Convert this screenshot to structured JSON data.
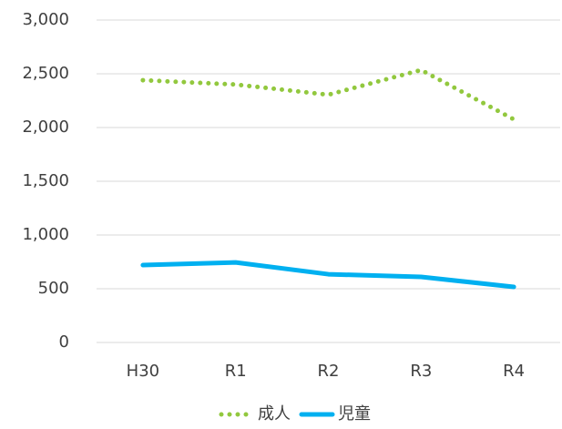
{
  "chart_data": {
    "type": "line",
    "categories": [
      "H30",
      "R1",
      "R2",
      "R3",
      "R4"
    ],
    "series": [
      {
        "name": "成人",
        "color": "#92c83e",
        "style": "dotted",
        "values": [
          2440,
          2400,
          2305,
          2535,
          2076
        ]
      },
      {
        "name": "児童",
        "color": "#00b0f0",
        "style": "solid",
        "values": [
          720,
          745,
          635,
          610,
          517
        ]
      }
    ],
    "ylim": [
      0,
      3000
    ],
    "yticks": [
      0,
      500,
      {
        "value": 1000,
        "label": "1,000"
      },
      {
        "value": 1500,
        "label": "1,500"
      },
      {
        "value": 2000,
        "label": "2,000"
      },
      {
        "value": 2500,
        "label": "2,500"
      },
      {
        "value": 3000,
        "label": "3,000"
      }
    ],
    "grid": true,
    "legend": "bottom"
  }
}
